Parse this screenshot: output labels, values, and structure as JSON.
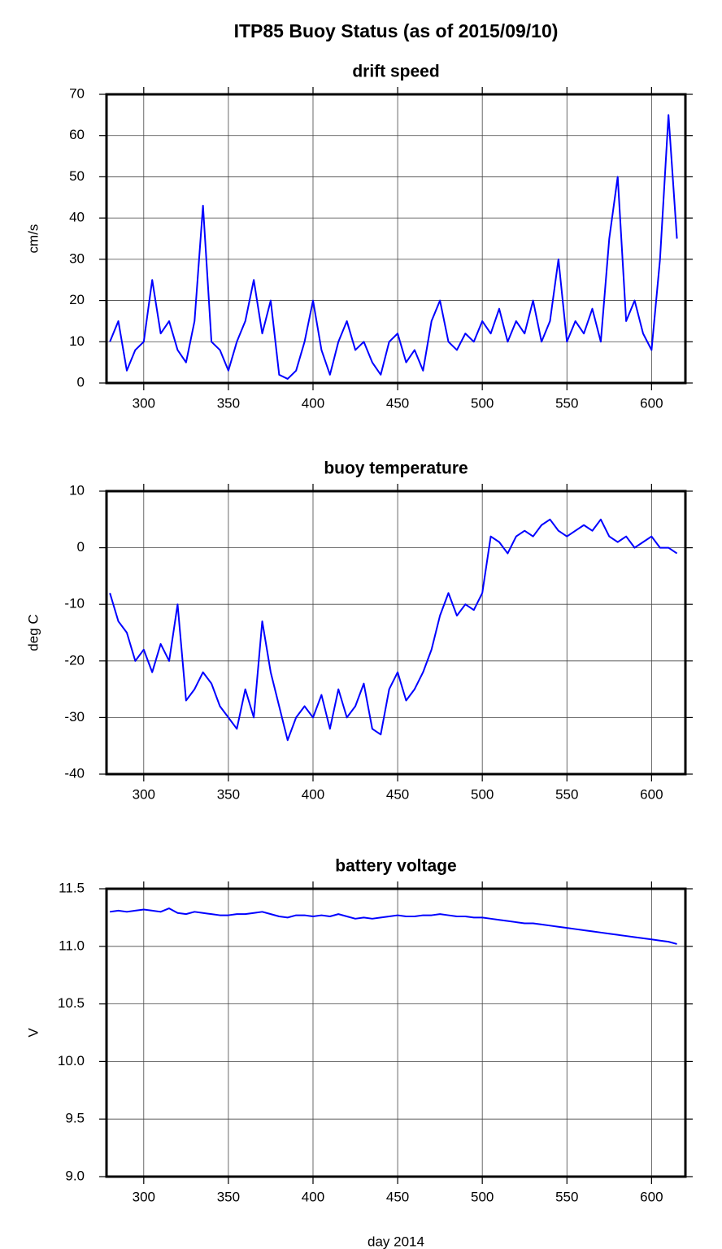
{
  "title": "ITP85 Buoy Status (as of 2015/09/10)",
  "chart_data": [
    {
      "type": "line",
      "title": "drift speed",
      "ylabel": "cm/s",
      "x": [
        280,
        285,
        290,
        295,
        300,
        305,
        310,
        315,
        320,
        325,
        330,
        335,
        340,
        345,
        350,
        355,
        360,
        365,
        370,
        375,
        380,
        385,
        390,
        395,
        400,
        405,
        410,
        415,
        420,
        425,
        430,
        435,
        440,
        445,
        450,
        455,
        460,
        465,
        470,
        475,
        480,
        485,
        490,
        495,
        500,
        505,
        510,
        515,
        520,
        525,
        530,
        535,
        540,
        545,
        550,
        555,
        560,
        565,
        570,
        575,
        580,
        585,
        590,
        595,
        600,
        605,
        610,
        615
      ],
      "series": [
        {
          "color": "#0000ff",
          "values": [
            10,
            15,
            3,
            8,
            10,
            25,
            12,
            15,
            8,
            5,
            15,
            43,
            10,
            8,
            3,
            10,
            15,
            25,
            12,
            20,
            2,
            1,
            3,
            10,
            20,
            8,
            2,
            10,
            15,
            8,
            10,
            5,
            2,
            10,
            12,
            5,
            8,
            3,
            15,
            20,
            10,
            8,
            12,
            10,
            15,
            12,
            18,
            10,
            15,
            12,
            20,
            10,
            15,
            30,
            10,
            15,
            12,
            18,
            10,
            35,
            50,
            15,
            20,
            12,
            8,
            30,
            65,
            35
          ]
        }
      ],
      "xlim": [
        278,
        620
      ],
      "xticks": [
        300,
        350,
        400,
        450,
        500,
        550,
        600
      ],
      "ylim": [
        0,
        70
      ],
      "yticks": [
        0,
        10,
        20,
        30,
        40,
        50,
        60,
        70
      ],
      "grid": true
    },
    {
      "type": "line",
      "title": "buoy temperature",
      "ylabel": "deg C",
      "x": [
        280,
        285,
        290,
        295,
        300,
        305,
        310,
        315,
        320,
        325,
        330,
        335,
        340,
        345,
        350,
        355,
        360,
        365,
        370,
        375,
        380,
        385,
        390,
        395,
        400,
        405,
        410,
        415,
        420,
        425,
        430,
        435,
        440,
        445,
        450,
        455,
        460,
        465,
        470,
        475,
        480,
        485,
        490,
        495,
        500,
        505,
        510,
        515,
        520,
        525,
        530,
        535,
        540,
        545,
        550,
        555,
        560,
        565,
        570,
        575,
        580,
        585,
        590,
        595,
        600,
        605,
        610,
        615
      ],
      "series": [
        {
          "color": "#0000ff",
          "values": [
            -8,
            -13,
            -15,
            -20,
            -18,
            -22,
            -17,
            -20,
            -10,
            -27,
            -25,
            -22,
            -24,
            -28,
            -30,
            -32,
            -25,
            -30,
            -13,
            -22,
            -28,
            -34,
            -30,
            -28,
            -30,
            -26,
            -32,
            -25,
            -30,
            -28,
            -24,
            -32,
            -33,
            -25,
            -22,
            -27,
            -25,
            -22,
            -18,
            -12,
            -8,
            -12,
            -10,
            -11,
            -8,
            2,
            1,
            -1,
            2,
            3,
            2,
            4,
            5,
            3,
            2,
            3,
            4,
            3,
            5,
            2,
            1,
            2,
            0,
            1,
            2,
            0,
            0,
            -1
          ]
        }
      ],
      "xlim": [
        278,
        620
      ],
      "xticks": [
        300,
        350,
        400,
        450,
        500,
        550,
        600
      ],
      "ylim": [
        -40,
        10
      ],
      "yticks": [
        -40,
        -30,
        -20,
        -10,
        0,
        10
      ],
      "grid": true
    },
    {
      "type": "line",
      "title": "battery voltage",
      "ylabel": "V",
      "xlabel": "day 2014",
      "x": [
        280,
        285,
        290,
        295,
        300,
        305,
        310,
        315,
        320,
        325,
        330,
        335,
        340,
        345,
        350,
        355,
        360,
        365,
        370,
        375,
        380,
        385,
        390,
        395,
        400,
        405,
        410,
        415,
        420,
        425,
        430,
        435,
        440,
        445,
        450,
        455,
        460,
        465,
        470,
        475,
        480,
        485,
        490,
        495,
        500,
        505,
        510,
        515,
        520,
        525,
        530,
        535,
        540,
        545,
        550,
        555,
        560,
        565,
        570,
        575,
        580,
        585,
        590,
        595,
        600,
        605,
        610,
        615
      ],
      "series": [
        {
          "color": "#0000ff",
          "values": [
            11.3,
            11.31,
            11.3,
            11.31,
            11.32,
            11.31,
            11.3,
            11.33,
            11.29,
            11.28,
            11.3,
            11.29,
            11.28,
            11.27,
            11.27,
            11.28,
            11.28,
            11.29,
            11.3,
            11.28,
            11.26,
            11.25,
            11.27,
            11.27,
            11.26,
            11.27,
            11.26,
            11.28,
            11.26,
            11.24,
            11.25,
            11.24,
            11.25,
            11.26,
            11.27,
            11.26,
            11.26,
            11.27,
            11.27,
            11.28,
            11.27,
            11.26,
            11.26,
            11.25,
            11.25,
            11.24,
            11.23,
            11.22,
            11.21,
            11.2,
            11.2,
            11.19,
            11.18,
            11.17,
            11.16,
            11.15,
            11.14,
            11.13,
            11.12,
            11.11,
            11.1,
            11.09,
            11.08,
            11.07,
            11.06,
            11.05,
            11.04,
            11.02
          ]
        }
      ],
      "xlim": [
        278,
        620
      ],
      "xticks": [
        300,
        350,
        400,
        450,
        500,
        550,
        600
      ],
      "ylim": [
        9,
        11.5
      ],
      "yticks": [
        {
          "value": 9,
          "label": "9.0"
        },
        9.5,
        {
          "value": 10,
          "label": "10.0"
        },
        10.5,
        {
          "value": 11,
          "label": "11.0"
        },
        11.5
      ],
      "grid": true
    }
  ]
}
